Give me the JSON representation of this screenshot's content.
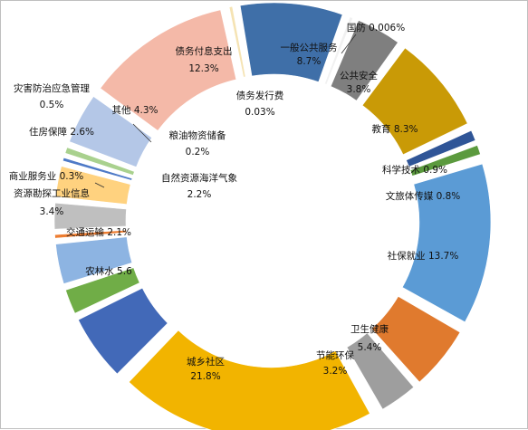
{
  "chart_data": {
    "type": "pie",
    "style": "exploded-donut",
    "title": "",
    "slices": [
      {
        "label": "一般公共服务",
        "value_label": "8.7%",
        "value": 8.7,
        "color": "#3f6fa8",
        "label_color": "#111111"
      },
      {
        "label": "国防",
        "value_label": "0.006%",
        "value": 0.006,
        "color": "#f1f1f1",
        "label_color": "#111111"
      },
      {
        "label": "公共安全",
        "value_label": "3.8%",
        "value": 3.8,
        "color": "#7f7f7f",
        "label_color": "#111111"
      },
      {
        "label": "教育",
        "value_label": "8.3%",
        "value": 8.3,
        "color": "#c99a06",
        "label_color": "#111111"
      },
      {
        "label": "科学技术",
        "value_label": "0.9%",
        "value": 0.9,
        "color": "#2f5597",
        "label_color": "#111111"
      },
      {
        "label": "文旅体传媒",
        "value_label": "0.8%",
        "value": 0.8,
        "color": "#5b9a3e",
        "label_color": "#111111"
      },
      {
        "label": "社保就业",
        "value_label": "13.7%",
        "value": 13.7,
        "color": "#5b9bd5",
        "label_color": "#111111"
      },
      {
        "label": "卫生健康",
        "value_label": "5.4%",
        "value": 5.4,
        "color": "#e07a2e",
        "label_color": "#111111"
      },
      {
        "label": "节能环保",
        "value_label": "3.2%",
        "value": 3.2,
        "color": "#9e9e9e",
        "label_color": "#111111"
      },
      {
        "label": "城乡社区",
        "value_label": "21.8%",
        "value": 21.8,
        "color": "#f2b400",
        "label_color": "#111111"
      },
      {
        "label": "农林水",
        "value_label": "5.6",
        "value": 5.6,
        "color": "#4269b8",
        "label_color": "#111111"
      },
      {
        "label": "交通运输",
        "value_label": "2.1%",
        "value": 2.1,
        "color": "#70ad47",
        "label_color": "#111111"
      },
      {
        "label": "资源勘探工业信息",
        "value_label": "3.4%",
        "value": 3.4,
        "color": "#8db4e2",
        "label_color": "#111111"
      },
      {
        "label": "商业服务业",
        "value_label": "0.3%",
        "value": 0.3,
        "color": "#ed7d31",
        "label_color": "#111111"
      },
      {
        "label": "自然资源海洋气象",
        "value_label": "2.2%",
        "value": 2.2,
        "color": "#bfbfbf",
        "label_color": "#111111"
      },
      {
        "label": "住房保障",
        "value_label": "2.6%",
        "value": 2.6,
        "color": "#ffd27f",
        "label_color": "#111111"
      },
      {
        "label": "粮油物资储备",
        "value_label": "0.2%",
        "value": 0.2,
        "color": "#4e7ac7",
        "label_color": "#111111"
      },
      {
        "label": "灾害防治应急管理",
        "value_label": "0.5%",
        "value": 0.5,
        "color": "#a9d18e",
        "label_color": "#111111"
      },
      {
        "label": "其他",
        "value_label": "4.3%",
        "value": 4.3,
        "color": "#b4c7e7",
        "label_color": "#111111"
      },
      {
        "label": "债务付息支出",
        "value_label": "12.3%",
        "value": 12.3,
        "color": "#f4b9a8",
        "label_color": "#111111"
      },
      {
        "label": "债务发行费",
        "value_label": "0.03%",
        "value": 0.03,
        "color": "#f5e3b3",
        "label_color": "#111111"
      }
    ],
    "legend": "none",
    "grid": false
  }
}
